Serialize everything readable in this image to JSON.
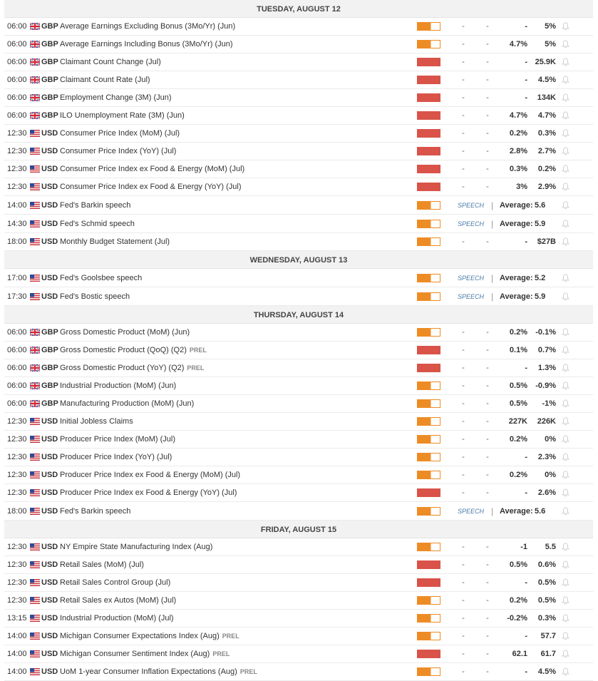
{
  "calendar": {
    "days": [
      {
        "label": "TUESDAY, AUGUST 12",
        "events": [
          {
            "time": "06:00",
            "flag": "uk-flag",
            "currency": "GBP",
            "name": "Average Earnings Excluding Bonus (3Mo/Yr) (Jun)",
            "prel": "",
            "impact": "medium",
            "actual": "-",
            "deviation": "-",
            "consensus": "-",
            "previous": "5%"
          },
          {
            "time": "06:00",
            "flag": "uk-flag",
            "currency": "GBP",
            "name": "Average Earnings Including Bonus (3Mo/Yr) (Jun)",
            "prel": "",
            "impact": "medium",
            "actual": "-",
            "deviation": "-",
            "consensus": "4.7%",
            "previous": "5%"
          },
          {
            "time": "06:00",
            "flag": "uk-flag",
            "currency": "GBP",
            "name": "Claimant Count Change (Jul)",
            "prel": "",
            "impact": "high",
            "actual": "-",
            "deviation": "-",
            "consensus": "-",
            "previous": "25.9K"
          },
          {
            "time": "06:00",
            "flag": "uk-flag",
            "currency": "GBP",
            "name": "Claimant Count Rate (Jul)",
            "prel": "",
            "impact": "high",
            "actual": "-",
            "deviation": "-",
            "consensus": "-",
            "previous": "4.5%"
          },
          {
            "time": "06:00",
            "flag": "uk-flag",
            "currency": "GBP",
            "name": "Employment Change (3M) (Jun)",
            "prel": "",
            "impact": "high",
            "actual": "-",
            "deviation": "-",
            "consensus": "-",
            "previous": "134K"
          },
          {
            "time": "06:00",
            "flag": "uk-flag",
            "currency": "GBP",
            "name": "ILO Unemployment Rate (3M) (Jun)",
            "prel": "",
            "impact": "high",
            "actual": "-",
            "deviation": "-",
            "consensus": "4.7%",
            "previous": "4.7%"
          },
          {
            "time": "12:30",
            "flag": "us-flag",
            "currency": "USD",
            "name": "Consumer Price Index (MoM) (Jul)",
            "prel": "",
            "impact": "high",
            "actual": "-",
            "deviation": "-",
            "consensus": "0.2%",
            "previous": "0.3%"
          },
          {
            "time": "12:30",
            "flag": "us-flag",
            "currency": "USD",
            "name": "Consumer Price Index (YoY) (Jul)",
            "prel": "",
            "impact": "high",
            "actual": "-",
            "deviation": "-",
            "consensus": "2.8%",
            "previous": "2.7%"
          },
          {
            "time": "12:30",
            "flag": "us-flag",
            "currency": "USD",
            "name": "Consumer Price Index ex Food & Energy (MoM) (Jul)",
            "prel": "",
            "impact": "high",
            "actual": "-",
            "deviation": "-",
            "consensus": "0.3%",
            "previous": "0.2%"
          },
          {
            "time": "12:30",
            "flag": "us-flag",
            "currency": "USD",
            "name": "Consumer Price Index ex Food & Energy (YoY) (Jul)",
            "prel": "",
            "impact": "high",
            "actual": "-",
            "deviation": "-",
            "consensus": "3%",
            "previous": "2.9%"
          },
          {
            "time": "14:00",
            "flag": "us-flag",
            "currency": "USD",
            "name": "Fed's Barkin speech",
            "prel": "",
            "impact": "medium",
            "speech": "SPEECH",
            "average_label": "Average:",
            "average_value": "5.6"
          },
          {
            "time": "14:30",
            "flag": "us-flag",
            "currency": "USD",
            "name": "Fed's Schmid speech",
            "prel": "",
            "impact": "medium",
            "speech": "SPEECH",
            "average_label": "Average:",
            "average_value": "5.9"
          },
          {
            "time": "18:00",
            "flag": "us-flag",
            "currency": "USD",
            "name": "Monthly Budget Statement (Jul)",
            "prel": "",
            "impact": "medium",
            "actual": "-",
            "deviation": "-",
            "consensus": "-",
            "previous": "$27B"
          }
        ]
      },
      {
        "label": "WEDNESDAY, AUGUST 13",
        "events": [
          {
            "time": "17:00",
            "flag": "us-flag",
            "currency": "USD",
            "name": "Fed's Goolsbee speech",
            "prel": "",
            "impact": "medium",
            "speech": "SPEECH",
            "average_label": "Average:",
            "average_value": "5.2"
          },
          {
            "time": "17:30",
            "flag": "us-flag",
            "currency": "USD",
            "name": "Fed's Bostic speech",
            "prel": "",
            "impact": "medium",
            "speech": "SPEECH",
            "average_label": "Average:",
            "average_value": "5.9"
          }
        ]
      },
      {
        "label": "THURSDAY, AUGUST 14",
        "events": [
          {
            "time": "06:00",
            "flag": "uk-flag",
            "currency": "GBP",
            "name": "Gross Domestic Product (MoM) (Jun)",
            "prel": "",
            "impact": "medium",
            "actual": "-",
            "deviation": "-",
            "consensus": "0.2%",
            "previous": "-0.1%"
          },
          {
            "time": "06:00",
            "flag": "uk-flag",
            "currency": "GBP",
            "name": "Gross Domestic Product (QoQ) (Q2)",
            "prel": "PREL",
            "impact": "high",
            "actual": "-",
            "deviation": "-",
            "consensus": "0.1%",
            "previous": "0.7%"
          },
          {
            "time": "06:00",
            "flag": "uk-flag",
            "currency": "GBP",
            "name": "Gross Domestic Product (YoY) (Q2)",
            "prel": "PREL",
            "impact": "high",
            "actual": "-",
            "deviation": "-",
            "consensus": "-",
            "previous": "1.3%"
          },
          {
            "time": "06:00",
            "flag": "uk-flag",
            "currency": "GBP",
            "name": "Industrial Production (MoM) (Jun)",
            "prel": "",
            "impact": "medium",
            "actual": "-",
            "deviation": "-",
            "consensus": "0.5%",
            "previous": "-0.9%"
          },
          {
            "time": "06:00",
            "flag": "uk-flag",
            "currency": "GBP",
            "name": "Manufacturing Production (MoM) (Jun)",
            "prel": "",
            "impact": "medium",
            "actual": "-",
            "deviation": "-",
            "consensus": "0.5%",
            "previous": "-1%"
          },
          {
            "time": "12:30",
            "flag": "us-flag",
            "currency": "USD",
            "name": "Initial Jobless Claims",
            "prel": "",
            "impact": "medium",
            "actual": "-",
            "deviation": "-",
            "consensus": "227K",
            "previous": "226K"
          },
          {
            "time": "12:30",
            "flag": "us-flag",
            "currency": "USD",
            "name": "Producer Price Index (MoM) (Jul)",
            "prel": "",
            "impact": "medium",
            "actual": "-",
            "deviation": "-",
            "consensus": "0.2%",
            "previous": "0%"
          },
          {
            "time": "12:30",
            "flag": "us-flag",
            "currency": "USD",
            "name": "Producer Price Index (YoY) (Jul)",
            "prel": "",
            "impact": "medium",
            "actual": "-",
            "deviation": "-",
            "consensus": "-",
            "previous": "2.3%"
          },
          {
            "time": "12:30",
            "flag": "us-flag",
            "currency": "USD",
            "name": "Producer Price Index ex Food & Energy (MoM) (Jul)",
            "prel": "",
            "impact": "medium",
            "actual": "-",
            "deviation": "-",
            "consensus": "0.2%",
            "previous": "0%"
          },
          {
            "time": "12:30",
            "flag": "us-flag",
            "currency": "USD",
            "name": "Producer Price Index ex Food & Energy (YoY) (Jul)",
            "prel": "",
            "impact": "high",
            "actual": "-",
            "deviation": "-",
            "consensus": "-",
            "previous": "2.6%"
          },
          {
            "time": "18:00",
            "flag": "us-flag",
            "currency": "USD",
            "name": "Fed's Barkin speech",
            "prel": "",
            "impact": "medium",
            "speech": "SPEECH",
            "average_label": "Average:",
            "average_value": "5.6"
          }
        ]
      },
      {
        "label": "FRIDAY, AUGUST 15",
        "events": [
          {
            "time": "12:30",
            "flag": "us-flag",
            "currency": "USD",
            "name": "NY Empire State Manufacturing Index (Aug)",
            "prel": "",
            "impact": "medium",
            "actual": "-",
            "deviation": "-",
            "consensus": "-1",
            "previous": "5.5"
          },
          {
            "time": "12:30",
            "flag": "us-flag",
            "currency": "USD",
            "name": "Retail Sales (MoM) (Jul)",
            "prel": "",
            "impact": "high",
            "actual": "-",
            "deviation": "-",
            "consensus": "0.5%",
            "previous": "0.6%"
          },
          {
            "time": "12:30",
            "flag": "us-flag",
            "currency": "USD",
            "name": "Retail Sales Control Group (Jul)",
            "prel": "",
            "impact": "high",
            "actual": "-",
            "deviation": "-",
            "consensus": "-",
            "previous": "0.5%"
          },
          {
            "time": "12:30",
            "flag": "us-flag",
            "currency": "USD",
            "name": "Retail Sales ex Autos (MoM) (Jul)",
            "prel": "",
            "impact": "medium",
            "actual": "-",
            "deviation": "-",
            "consensus": "0.2%",
            "previous": "0.5%"
          },
          {
            "time": "13:15",
            "flag": "us-flag",
            "currency": "USD",
            "name": "Industrial Production (MoM) (Jul)",
            "prel": "",
            "impact": "medium",
            "actual": "-",
            "deviation": "-",
            "consensus": "-0.2%",
            "previous": "0.3%"
          },
          {
            "time": "14:00",
            "flag": "us-flag",
            "currency": "USD",
            "name": "Michigan Consumer Expectations Index (Aug)",
            "prel": "PREL",
            "impact": "medium",
            "actual": "-",
            "deviation": "-",
            "consensus": "-",
            "previous": "57.7"
          },
          {
            "time": "14:00",
            "flag": "us-flag",
            "currency": "USD",
            "name": "Michigan Consumer Sentiment Index (Aug)",
            "prel": "PREL",
            "impact": "high",
            "actual": "-",
            "deviation": "-",
            "consensus": "62.1",
            "previous": "61.7"
          },
          {
            "time": "14:00",
            "flag": "us-flag",
            "currency": "USD",
            "name": "UoM 1-year Consumer Inflation Expectations (Aug)",
            "prel": "PREL",
            "impact": "medium",
            "actual": "-",
            "deviation": "-",
            "consensus": "-",
            "previous": "4.5%"
          }
        ]
      }
    ],
    "icons": {
      "alert": "bell-icon"
    },
    "colors": {
      "impact_medium": "#ed8c25",
      "impact_high": "#d95349",
      "speech_text": "#4b7aa8",
      "day_header_bg": "#f2f2f2"
    }
  }
}
